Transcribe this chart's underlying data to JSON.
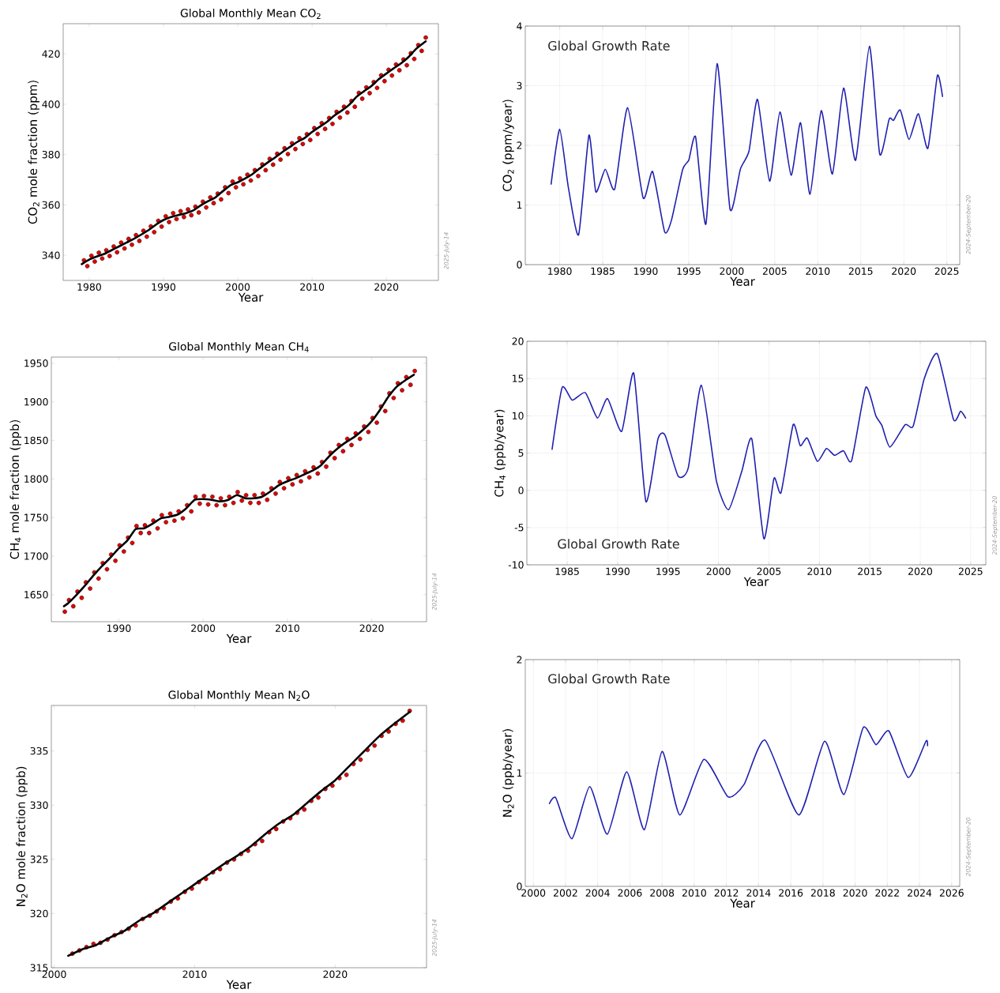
{
  "chart_data": [
    {
      "type": "line",
      "title": "Global Monthly Mean CO$_{2}$",
      "xlabel": "Year",
      "ylabel": "CO$_{2}$ mole fraction (ppm)",
      "xlim": [
        1976.5,
        2027
      ],
      "ylim": [
        330,
        432
      ],
      "xticks": [
        1980,
        1990,
        2000,
        2010,
        2020
      ],
      "yticks": [
        340,
        360,
        380,
        400,
        420
      ],
      "annotations": [
        "2025-July-14"
      ],
      "series": [
        {
          "type": "scatter",
          "marker": "circle",
          "color": "#e00000",
          "x": [
            1979.3,
            1979.75,
            1980.3,
            1980.75,
            1981.3,
            1981.75,
            1982.3,
            1982.75,
            1983.3,
            1983.75,
            1984.3,
            1984.75,
            1985.3,
            1985.75,
            1986.3,
            1986.75,
            1987.3,
            1987.75,
            1988.3,
            1988.75,
            1989.3,
            1989.75,
            1990.3,
            1990.75,
            1991.3,
            1991.75,
            1992.3,
            1992.75,
            1993.3,
            1993.75,
            1994.3,
            1994.75,
            1995.3,
            1995.75,
            1996.3,
            1996.75,
            1997.3,
            1997.75,
            1998.3,
            1998.75,
            1999.3,
            1999.75,
            2000.3,
            2000.75,
            2001.3,
            2001.75,
            2002.3,
            2002.75,
            2003.3,
            2003.75,
            2004.3,
            2004.75,
            2005.3,
            2005.75,
            2006.3,
            2006.75,
            2007.3,
            2007.75,
            2008.3,
            2008.75,
            2009.3,
            2009.75,
            2010.3,
            2010.75,
            2011.3,
            2011.75,
            2012.3,
            2012.75,
            2013.3,
            2013.75,
            2014.3,
            2014.75,
            2015.3,
            2015.75,
            2016.3,
            2016.75,
            2017.3,
            2017.75,
            2018.3,
            2018.75,
            2019.3,
            2019.75,
            2020.3,
            2020.75,
            2021.3,
            2021.75,
            2022.3,
            2022.75,
            2023.3,
            2023.75,
            2024.3,
            2024.75,
            2025.3
          ],
          "values": [
            338,
            335.7,
            339.8,
            337.5,
            341,
            338.7,
            342,
            339.7,
            343.5,
            341.2,
            345,
            342.7,
            346.5,
            344.2,
            348,
            345.7,
            349.7,
            347.4,
            351.5,
            349.2,
            353.7,
            351.4,
            355.5,
            353.2,
            356.7,
            354.4,
            357.5,
            355.2,
            358.2,
            355.9,
            359.3,
            357,
            361.3,
            359,
            363,
            360.7,
            364.5,
            362.2,
            367,
            364.7,
            369.3,
            367,
            370.5,
            368.2,
            372,
            369.7,
            373.8,
            371.5,
            376.1,
            373.8,
            378.3,
            376,
            380.3,
            378,
            382.5,
            380.2,
            384.5,
            382.2,
            386.5,
            384.2,
            388.1,
            385.8,
            390.5,
            388.2,
            392.5,
            390.2,
            394.5,
            392.2,
            397,
            394.7,
            399,
            396.7,
            401.3,
            399,
            404.5,
            402.2,
            406.7,
            404.4,
            408.8,
            406.5,
            411.5,
            409.2,
            413.7,
            411.4,
            415.8,
            413.5,
            417.8,
            415.5,
            420.3,
            418,
            423.5,
            421.2,
            426.5
          ]
        },
        {
          "type": "line",
          "color": "#000000",
          "x": [
            1979,
            1980,
            1981,
            1982,
            1983,
            1984,
            1985,
            1986,
            1987,
            1988,
            1989,
            1990,
            1991,
            1992,
            1993,
            1994,
            1995,
            1996,
            1997,
            1998,
            1999,
            2000,
            2001,
            2002,
            2003,
            2004,
            2005,
            2006,
            2007,
            2008,
            2009,
            2010,
            2011,
            2012,
            2013,
            2014,
            2015,
            2016,
            2017,
            2018,
            2019,
            2020,
            2021,
            2022,
            2023,
            2024,
            2025.3
          ],
          "values": [
            336.5,
            338.3,
            339.5,
            340.5,
            342,
            343.5,
            345,
            346.5,
            348.2,
            350,
            352.2,
            354,
            355.2,
            356,
            356.7,
            357.8,
            359.8,
            361.5,
            363,
            365.5,
            367.8,
            369,
            370.5,
            372.3,
            374.6,
            376.8,
            378.8,
            381,
            383,
            385,
            386.6,
            389,
            391,
            393,
            395.5,
            397.5,
            399.8,
            403,
            405.2,
            407.3,
            410,
            412.2,
            414.3,
            416.3,
            418.8,
            422,
            425
          ]
        }
      ]
    },
    {
      "type": "line",
      "xlabel": "Year",
      "ylabel": "CO$_{2}$ (ppm/year)",
      "xlim": [
        1976,
        2026.5
      ],
      "ylim": [
        0,
        4
      ],
      "xticks": [
        1980,
        1985,
        1990,
        1995,
        2000,
        2005,
        2010,
        2015,
        2020,
        2025
      ],
      "yticks": [
        0,
        1,
        2,
        3,
        4
      ],
      "grid": true,
      "annotations": [
        "Global Growth Rate",
        "2024-September-20"
      ],
      "series": [
        {
          "color": "#2020b0",
          "x": [
            1979,
            1980,
            1981,
            1982.2,
            1983.4,
            1984.2,
            1985.3,
            1986.4,
            1987.9,
            1989.7,
            1990.8,
            1992.2,
            1993,
            1994.3,
            1995,
            1995.8,
            1997,
            1998.3,
            1999.8,
            2001,
            2002,
            2003,
            2004.4,
            2005.6,
            2006.9,
            2008,
            2009.1,
            2010.4,
            2011.7,
            2013,
            2014.4,
            2016,
            2017.2,
            2018.3,
            2018.8,
            2019.6,
            2020.6,
            2021.7,
            2022.8,
            2023.9,
            2024.5
          ],
          "values": [
            1.35,
            2.27,
            1.3,
            0.5,
            2.17,
            1.22,
            1.6,
            1.27,
            2.63,
            1.12,
            1.56,
            0.55,
            0.75,
            1.6,
            1.75,
            2.14,
            0.68,
            3.37,
            0.93,
            1.6,
            1.9,
            2.77,
            1.4,
            2.56,
            1.5,
            2.38,
            1.18,
            2.58,
            1.52,
            2.96,
            1.75,
            3.66,
            1.85,
            2.44,
            2.42,
            2.59,
            2.1,
            2.53,
            1.95,
            3.17,
            2.82
          ]
        }
      ]
    },
    {
      "type": "line",
      "title": "Global Monthly Mean CH$_{4}$",
      "xlabel": "Year",
      "ylabel": "CH$_{4}$ mole fraction (ppb)",
      "xlim": [
        1982,
        2026.5
      ],
      "ylim": [
        1615,
        1958
      ],
      "xticks": [
        1990,
        2000,
        2010,
        2020
      ],
      "yticks": [
        1650,
        1700,
        1750,
        1800,
        1850,
        1900,
        1950
      ],
      "annotations": [
        "2025-July-14"
      ],
      "series": [
        {
          "type": "scatter",
          "marker": "circle",
          "color": "#e00000",
          "x": [
            1983.6,
            1984.1,
            1984.6,
            1985.1,
            1985.6,
            1986.1,
            1986.6,
            1987.1,
            1987.6,
            1988.1,
            1988.6,
            1989.1,
            1989.6,
            1990.1,
            1990.6,
            1991.1,
            1991.6,
            1992.1,
            1992.6,
            1993.1,
            1993.6,
            1994.1,
            1994.6,
            1995.1,
            1995.6,
            1996.1,
            1996.6,
            1997.1,
            1997.6,
            1998.1,
            1998.6,
            1999.1,
            1999.6,
            2000.1,
            2000.6,
            2001.1,
            2001.6,
            2002.1,
            2002.6,
            2003.1,
            2003.6,
            2004.1,
            2004.6,
            2005.1,
            2005.6,
            2006.1,
            2006.6,
            2007.1,
            2007.6,
            2008.1,
            2008.6,
            2009.1,
            2009.6,
            2010.1,
            2010.6,
            2011.1,
            2011.6,
            2012.1,
            2012.6,
            2013.1,
            2013.6,
            2014.1,
            2014.6,
            2015.1,
            2015.6,
            2016.1,
            2016.6,
            2017.1,
            2017.6,
            2018.1,
            2018.6,
            2019.1,
            2019.6,
            2020.1,
            2020.6,
            2021.1,
            2021.6,
            2022.1,
            2022.6,
            2023.1,
            2023.6,
            2024.1,
            2024.6,
            2025.1
          ],
          "values": [
            1628,
            1643,
            1635,
            1654,
            1646,
            1666,
            1658,
            1679,
            1671,
            1691,
            1683,
            1702,
            1694,
            1714,
            1706,
            1724,
            1717,
            1739,
            1730,
            1740,
            1730,
            1746,
            1736,
            1753,
            1744,
            1755,
            1746,
            1758,
            1749,
            1766,
            1758,
            1777,
            1768,
            1778,
            1767,
            1777,
            1766,
            1775,
            1766,
            1777,
            1769,
            1783,
            1772,
            1779,
            1769,
            1779,
            1769,
            1781,
            1773,
            1788,
            1781,
            1796,
            1788,
            1801,
            1793,
            1805,
            1797,
            1810,
            1802,
            1815,
            1807,
            1822,
            1816,
            1834,
            1827,
            1844,
            1836,
            1852,
            1844,
            1859,
            1852,
            1868,
            1861,
            1879,
            1873,
            1894,
            1888,
            1911,
            1905,
            1924,
            1915,
            1932,
            1922,
            1940
          ]
        },
        {
          "type": "line",
          "color": "#000000",
          "x": [
            1983.5,
            1984,
            1985,
            1986,
            1987,
            1988,
            1989,
            1990,
            1991,
            1992,
            1993,
            1994,
            1995,
            1996,
            1997,
            1998,
            1999,
            2000,
            2001,
            2002,
            2003,
            2004,
            2005,
            2006,
            2007,
            2008,
            2009,
            2010,
            2011,
            2012,
            2013,
            2014,
            2015,
            2016,
            2017,
            2018,
            2019,
            2020,
            2021,
            2022,
            2023,
            2024,
            2025
          ],
          "values": [
            1635,
            1639,
            1650,
            1662,
            1675,
            1687,
            1698,
            1710,
            1720,
            1735,
            1736,
            1742,
            1749,
            1751,
            1754,
            1762,
            1773,
            1774,
            1773,
            1771,
            1773,
            1779,
            1775,
            1775,
            1777,
            1784,
            1792,
            1797,
            1801,
            1806,
            1811,
            1818,
            1830,
            1840,
            1848,
            1855,
            1864,
            1875,
            1890,
            1907,
            1920,
            1928,
            1935
          ]
        }
      ]
    },
    {
      "type": "line",
      "xlabel": "Year",
      "ylabel": "CH$_{4}$ (ppb/year)",
      "xlim": [
        1981,
        2026.5
      ],
      "ylim": [
        -10,
        20
      ],
      "xticks": [
        1985,
        1990,
        1995,
        2000,
        2005,
        2010,
        2015,
        2020,
        2025
      ],
      "yticks": [
        -10,
        -5,
        0,
        5,
        10,
        15,
        20
      ],
      "grid": true,
      "annotations": [
        "Global Growth Rate",
        "2024-September-20"
      ],
      "series": [
        {
          "color": "#2020b0",
          "x": [
            1983.5,
            1984.5,
            1985.5,
            1986.8,
            1988,
            1989,
            1990.4,
            1991.6,
            1992.8,
            1994,
            1994.7,
            1996,
            1997,
            1998.3,
            1999.8,
            2001,
            2002.3,
            2003.3,
            2004.5,
            2005.5,
            2006.2,
            2007.4,
            2008.1,
            2008.8,
            2009.8,
            2010.7,
            2011.5,
            2012.4,
            2013.2,
            2014.6,
            2015.6,
            2016.2,
            2017,
            2018.5,
            2019.3,
            2020.4,
            2021.7,
            2023.3,
            2024,
            2024.5
          ],
          "values": [
            5.5,
            13.8,
            12.1,
            13.1,
            9.7,
            12.3,
            7.9,
            15.7,
            -1.5,
            6.9,
            7.4,
            1.9,
            3,
            14.1,
            1.2,
            -2.6,
            2.5,
            6.9,
            -6.5,
            1.6,
            -0.3,
            8.8,
            6,
            7,
            3.9,
            5.6,
            4.7,
            5.3,
            4,
            13.8,
            10,
            8.7,
            5.8,
            8.8,
            8.6,
            15,
            18.3,
            9.5,
            10.6,
            9.7
          ]
        }
      ]
    },
    {
      "type": "line",
      "title": "Global Monthly Mean N$_{2}$O",
      "xlabel": "Year",
      "ylabel": "N$_{2}$O mole fraction (ppb)",
      "xlim": [
        1999.8,
        2026.5
      ],
      "ylim": [
        315,
        339.2
      ],
      "xticks": [
        2000,
        2010,
        2020
      ],
      "yticks": [
        315,
        320,
        325,
        330,
        335
      ],
      "annotations": [
        "2025-July-14"
      ],
      "series": [
        {
          "type": "scatter",
          "marker": "circle",
          "color": "#e00000",
          "x": [
            2001.3,
            2001.8,
            2002.3,
            2002.8,
            2003.3,
            2003.8,
            2004.3,
            2004.8,
            2005.3,
            2005.8,
            2006.3,
            2006.8,
            2007.3,
            2007.8,
            2008.3,
            2008.8,
            2009.3,
            2009.8,
            2010.3,
            2010.8,
            2011.3,
            2011.8,
            2012.3,
            2012.8,
            2013.3,
            2013.8,
            2014.3,
            2014.8,
            2015.3,
            2015.8,
            2016.3,
            2016.8,
            2017.3,
            2017.8,
            2018.3,
            2018.8,
            2019.3,
            2019.8,
            2020.3,
            2020.8,
            2021.3,
            2021.8,
            2022.3,
            2022.8,
            2023.3,
            2023.8,
            2024.3,
            2024.8,
            2025.3
          ],
          "values": [
            316.3,
            316.6,
            316.9,
            317.2,
            317.3,
            317.6,
            318.0,
            318.3,
            318.6,
            318.9,
            319.5,
            319.8,
            320.2,
            320.5,
            321.1,
            321.4,
            322.0,
            322.3,
            322.9,
            323.2,
            323.8,
            324.1,
            324.7,
            325.0,
            325.5,
            325.8,
            326.4,
            326.7,
            327.5,
            327.8,
            328.5,
            328.8,
            329.3,
            329.6,
            330.4,
            330.7,
            331.5,
            331.8,
            332.5,
            332.8,
            333.8,
            334.2,
            335.1,
            335.5,
            336.4,
            336.8,
            337.5,
            337.8,
            338.7
          ]
        },
        {
          "type": "line",
          "color": "#000000",
          "x": [
            2001,
            2002,
            2003,
            2004,
            2005,
            2006,
            2007,
            2008,
            2009,
            2010,
            2011,
            2012,
            2013,
            2014,
            2015,
            2016,
            2017,
            2018,
            2019,
            2020,
            2021,
            2022,
            2023,
            2024,
            2025.3
          ],
          "values": [
            316.1,
            316.7,
            317.1,
            317.8,
            318.4,
            319.3,
            320.0,
            320.9,
            321.8,
            322.7,
            323.6,
            324.5,
            325.3,
            326.2,
            327.3,
            328.3,
            329.1,
            330.2,
            331.3,
            332.3,
            333.6,
            334.9,
            336.2,
            337.3,
            338.6
          ]
        }
      ]
    },
    {
      "type": "line",
      "xlabel": "Year",
      "ylabel": "N$_{2}$O (ppb/year)",
      "xlim": [
        1999.5,
        2026.5
      ],
      "ylim": [
        0,
        2
      ],
      "xticks": [
        2000,
        2002,
        2004,
        2006,
        2008,
        2010,
        2012,
        2014,
        2016,
        2018,
        2020,
        2022,
        2024,
        2026
      ],
      "yticks": [
        0,
        1,
        2
      ],
      "grid": true,
      "annotations": [
        "Global Growth Rate",
        "2024-September-20"
      ],
      "series": [
        {
          "color": "#2020b0",
          "x": [
            2001,
            2001.4,
            2002.4,
            2003.5,
            2004.6,
            2005.8,
            2006.9,
            2008,
            2009.1,
            2010.6,
            2012.1,
            2013.1,
            2014.4,
            2016.5,
            2018.1,
            2019.3,
            2020.5,
            2021.3,
            2022.1,
            2023.3,
            2024.4,
            2024.5
          ],
          "values": [
            0.73,
            0.78,
            0.42,
            0.88,
            0.46,
            1.01,
            0.5,
            1.19,
            0.63,
            1.12,
            0.79,
            0.9,
            1.29,
            0.63,
            1.28,
            0.81,
            1.4,
            1.25,
            1.37,
            0.96,
            1.28,
            1.24
          ]
        }
      ]
    }
  ]
}
